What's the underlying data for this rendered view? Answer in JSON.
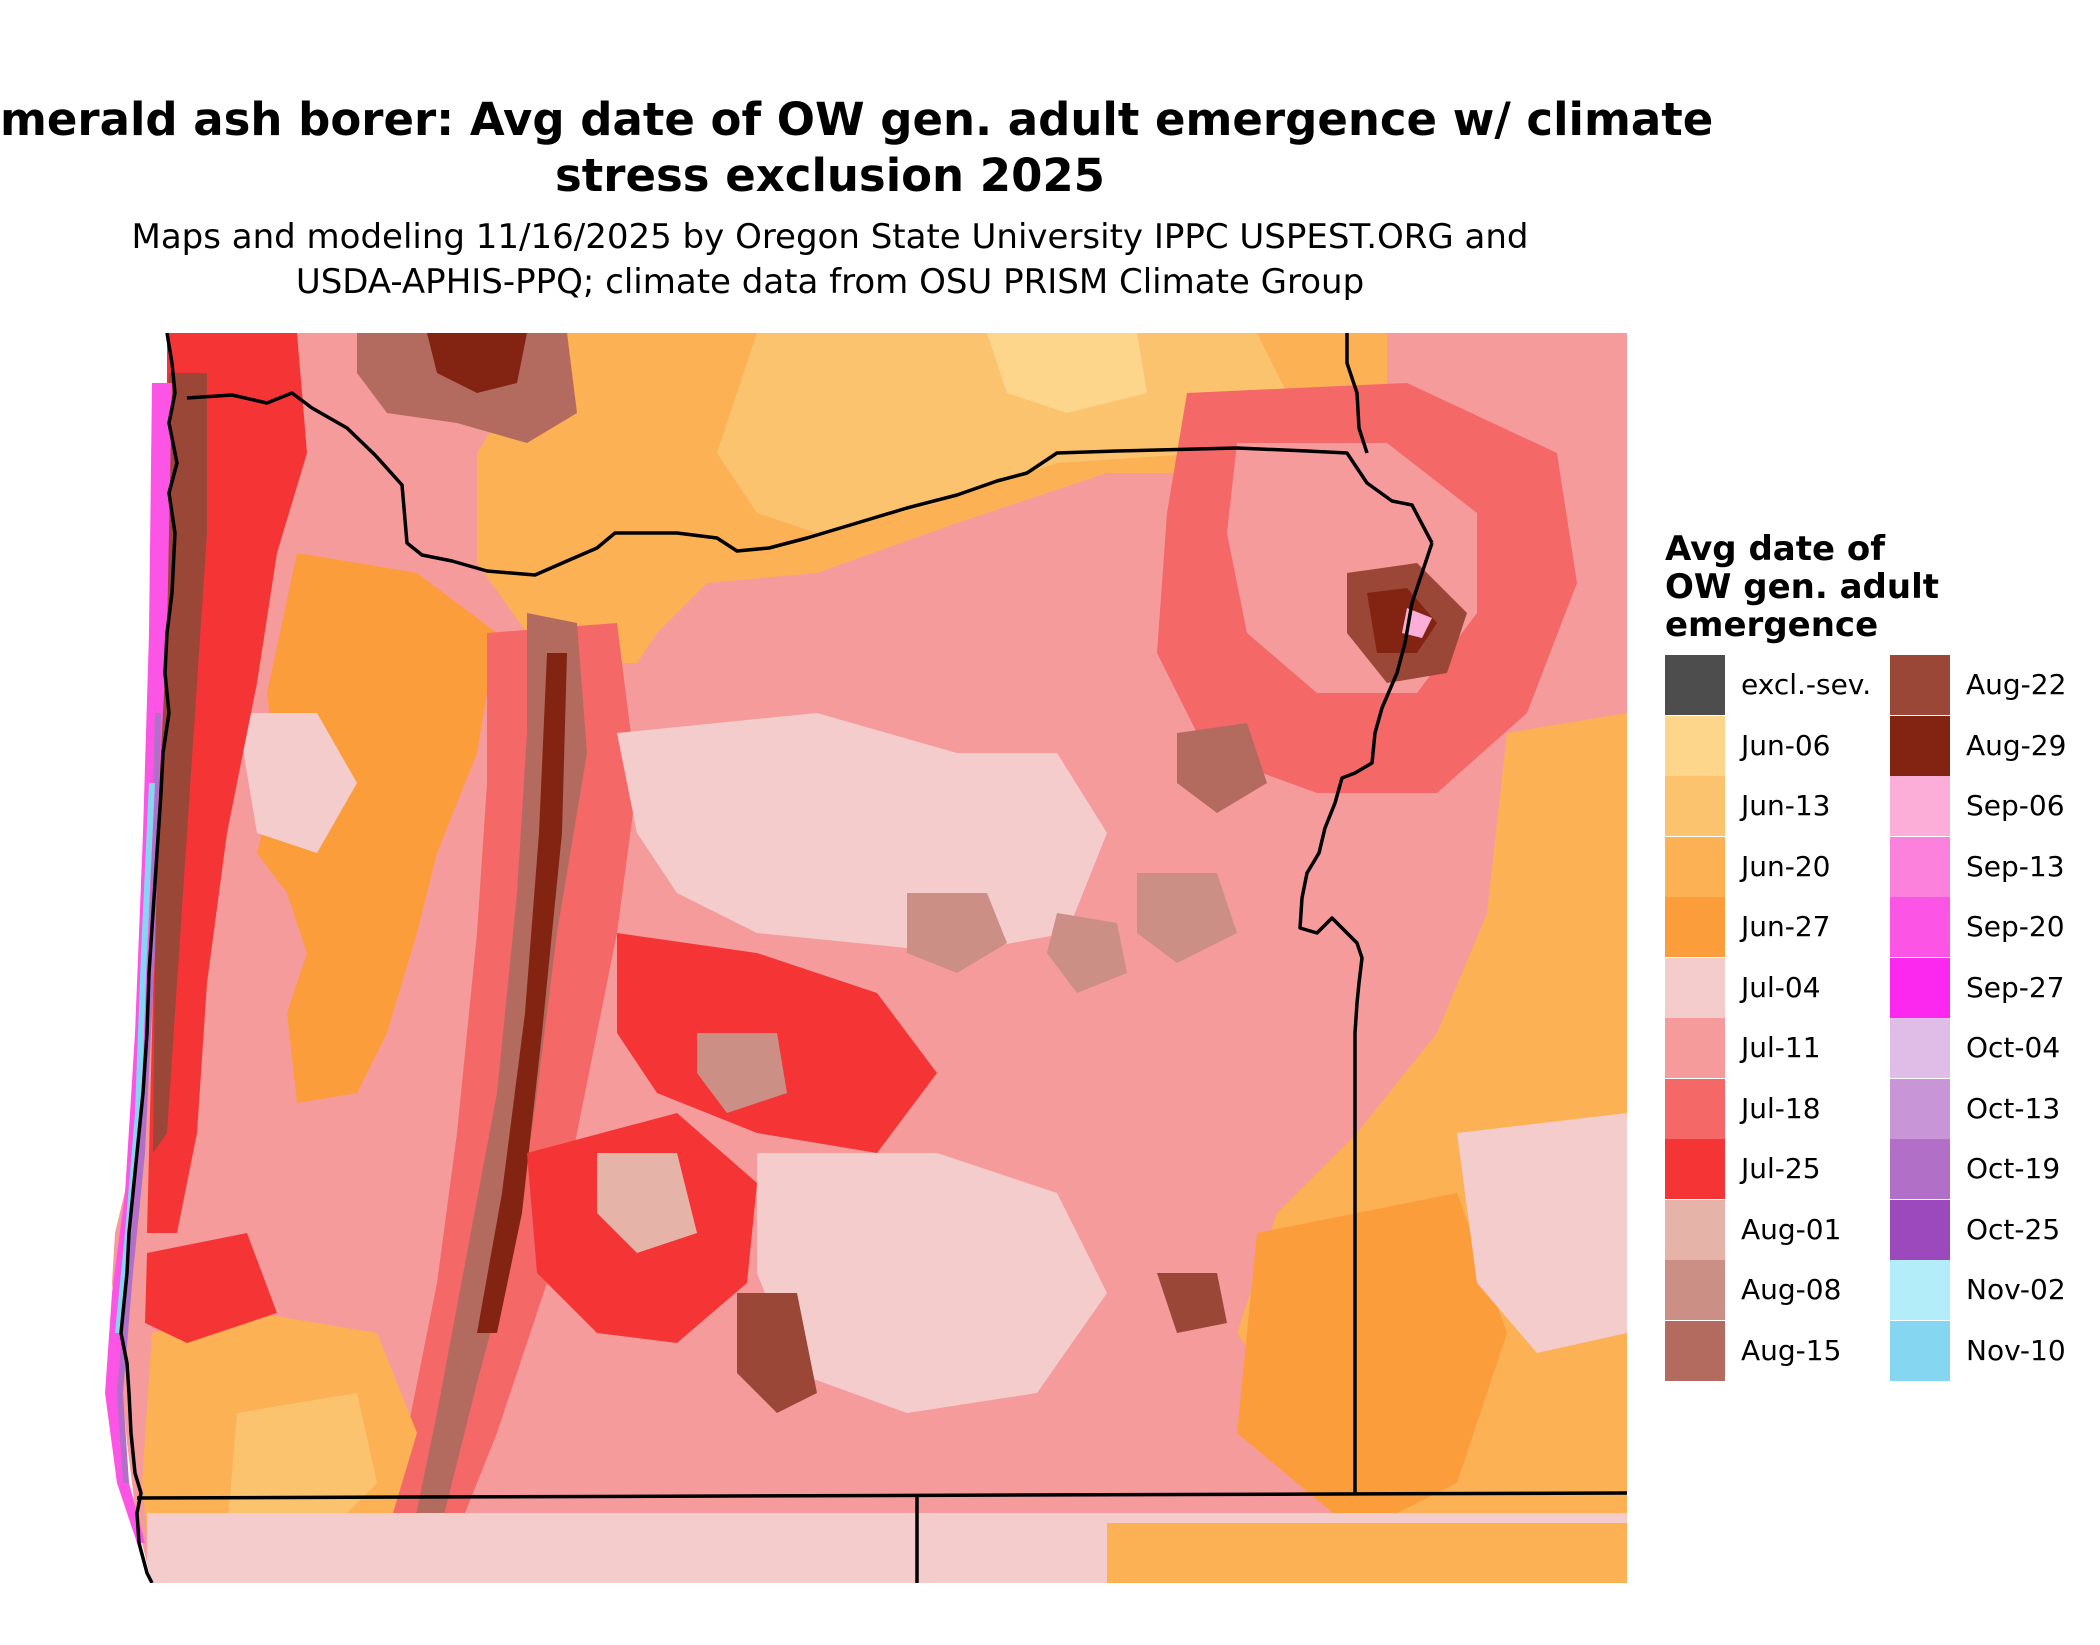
{
  "title_line1": "merald ash borer: Avg date of OW gen. adult emergence w/ climate",
  "title_line2": "stress exclusion 2025",
  "subtitle_line1": "Maps and modeling 11/16/2025 by Oregon State University IPPC USPEST.ORG and",
  "subtitle_line2": "USDA-APHIS-PPQ; climate data from OSU PRISM Climate Group",
  "legend": {
    "title_line1": "Avg date of",
    "title_line2": "OW gen. adult",
    "title_line3": "emergence",
    "items": [
      {
        "label": "excl.-sev.",
        "color": "#4d4d4d"
      },
      {
        "label": "Jun-06",
        "color": "#fdd58b"
      },
      {
        "label": "Jun-13",
        "color": "#fcc36f"
      },
      {
        "label": "Jun-20",
        "color": "#fcb154"
      },
      {
        "label": "Jun-27",
        "color": "#fb9d3b"
      },
      {
        "label": "Jul-04",
        "color": "#f5cccc"
      },
      {
        "label": "Jul-11",
        "color": "#f59b9b"
      },
      {
        "label": "Jul-18",
        "color": "#f56868"
      },
      {
        "label": "Jul-25",
        "color": "#f53535"
      },
      {
        "label": "Aug-01",
        "color": "#e5b3a8"
      },
      {
        "label": "Aug-08",
        "color": "#cc8f85"
      },
      {
        "label": "Aug-15",
        "color": "#b36b60"
      },
      {
        "label": "Aug-22",
        "color": "#9a4738"
      },
      {
        "label": "Aug-29",
        "color": "#822411"
      },
      {
        "label": "Sep-06",
        "color": "#fcaed8"
      },
      {
        "label": "Sep-13",
        "color": "#fc81dc"
      },
      {
        "label": "Sep-20",
        "color": "#fc55e6"
      },
      {
        "label": "Sep-27",
        "color": "#fc28ef"
      },
      {
        "label": "Oct-04",
        "color": "#e0bde6"
      },
      {
        "label": "Oct-13",
        "color": "#c896d6"
      },
      {
        "label": "Oct-19",
        "color": "#b26fc7"
      },
      {
        "label": "Oct-25",
        "color": "#9c49bd"
      },
      {
        "label": "Nov-02",
        "color": "#b3edfa"
      },
      {
        "label": "Nov-10",
        "color": "#85d6f0"
      }
    ]
  }
}
